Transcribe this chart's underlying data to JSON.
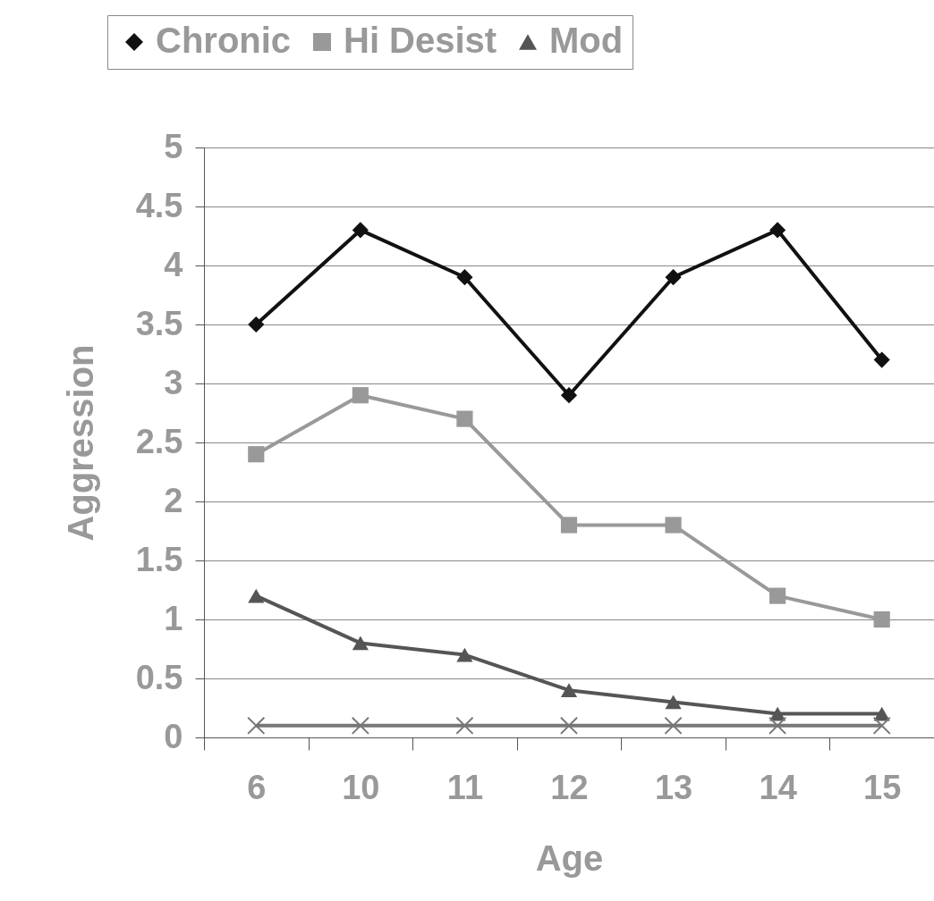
{
  "chart_data": {
    "type": "line",
    "xlabel": "Age",
    "ylabel": "Aggression",
    "categories": [
      "6",
      "10",
      "11",
      "12",
      "13",
      "14",
      "15"
    ],
    "series": [
      {
        "name": "Chronic",
        "color": "#111111",
        "marker": "diamond",
        "values": [
          3.5,
          4.3,
          3.9,
          2.9,
          3.9,
          4.3,
          3.2
        ]
      },
      {
        "name": "Hi Desist",
        "color": "#999999",
        "marker": "square",
        "values": [
          2.4,
          2.9,
          2.7,
          1.8,
          1.8,
          1.2,
          1.0
        ]
      },
      {
        "name": "Mod",
        "color": "#555555",
        "marker": "triangle",
        "values": [
          1.2,
          0.8,
          0.7,
          0.4,
          0.3,
          0.2,
          0.2
        ]
      },
      {
        "color": "#777777",
        "marker": "cross",
        "values": [
          0.1,
          0.1,
          0.1,
          0.1,
          0.1,
          0.1,
          0.1
        ]
      }
    ],
    "ylim": [
      0,
      5
    ],
    "yticks": [
      0,
      0.5,
      1,
      1.5,
      2,
      2.5,
      3,
      3.5,
      4,
      4.5,
      5
    ],
    "grid": "y",
    "legend": "top",
    "line_style": "solid"
  }
}
